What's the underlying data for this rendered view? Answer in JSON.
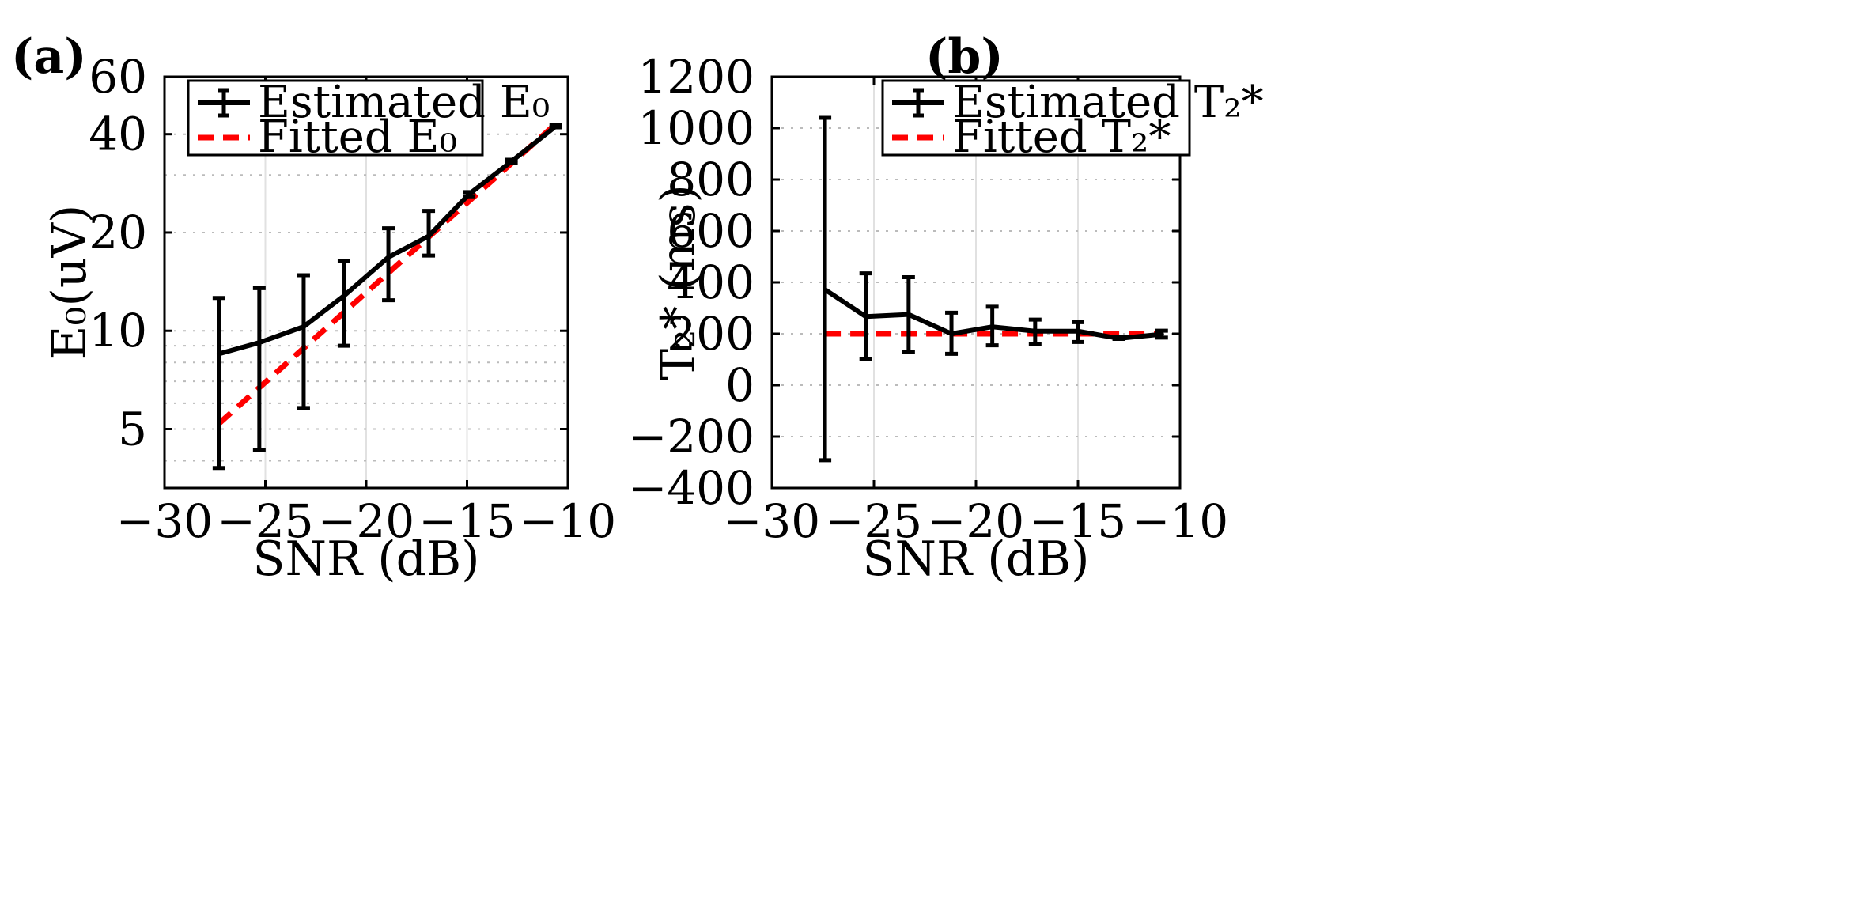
{
  "figure": {
    "panels": [
      {
        "label": "(a)"
      },
      {
        "label": "(b)"
      }
    ]
  },
  "chart_data": [
    {
      "type": "line",
      "panel": "(a)",
      "yscale": "log",
      "xlabel": "SNR (dB)",
      "ylabel": "E₀(uV)",
      "xlim": [
        -30,
        -10
      ],
      "ylim": [
        3.3,
        60
      ],
      "xticks": [
        -30,
        -25,
        -20,
        -15,
        -10
      ],
      "xtick_labels": [
        "−30",
        "−25",
        "−20",
        "−15",
        "−10"
      ],
      "yticks": [
        5,
        10,
        20,
        40,
        60
      ],
      "ytick_labels": [
        "5",
        "10",
        "20",
        "40",
        "60"
      ],
      "minor_grid_y": [
        4,
        6,
        7,
        8,
        9,
        30
      ],
      "legend": {
        "position": "top-left",
        "estimated": "Estimated E₀",
        "fitted": "Fitted E₀"
      },
      "series": [
        {
          "name": "Estimated E₀",
          "style": "solid-black-errorbar",
          "x": [
            -27.3,
            -25.3,
            -23.1,
            -21.1,
            -18.9,
            -16.9,
            -14.9,
            -12.8,
            -10.6
          ],
          "y": [
            8.5,
            9.2,
            10.3,
            12.8,
            16.8,
            19.5,
            26.2,
            33.0,
            42.3
          ],
          "err_low": [
            3.8,
            4.3,
            5.8,
            9.0,
            12.4,
            17.0,
            25.8,
            32.6,
            42.0
          ],
          "err_high": [
            12.6,
            13.5,
            14.8,
            16.4,
            20.6,
            23.3,
            26.6,
            33.4,
            42.6
          ]
        },
        {
          "name": "Fitted E₀",
          "style": "dashed-red",
          "x": [
            -27.3,
            -10.6
          ],
          "y": [
            5.2,
            43.0
          ]
        }
      ]
    },
    {
      "type": "line",
      "panel": "(b)",
      "xlabel": "SNR (dB)",
      "ylabel": "T₂* (ms)",
      "xlim": [
        -30,
        -10
      ],
      "ylim": [
        -400,
        1200
      ],
      "xticks": [
        -30,
        -25,
        -20,
        -15,
        -10
      ],
      "xtick_labels": [
        "−30",
        "−25",
        "−20",
        "−15",
        "−10"
      ],
      "yticks": [
        -400,
        -200,
        0,
        200,
        400,
        600,
        800,
        1000,
        1200
      ],
      "ytick_labels": [
        "−400",
        "−200",
        "0",
        "200",
        "400",
        "600",
        "800",
        "1000",
        "1200"
      ],
      "legend": {
        "position": "top-right",
        "estimated": "Estimated T₂*",
        "fitted": "Fitted T₂*"
      },
      "series": [
        {
          "name": "Estimated T₂*",
          "style": "solid-black-errorbar",
          "x": [
            -27.4,
            -25.4,
            -23.3,
            -21.2,
            -19.2,
            -17.1,
            -15.0,
            -13.0,
            -10.9
          ],
          "y": [
            372,
            267,
            275,
            200,
            227,
            210,
            210,
            182,
            198
          ],
          "err_low": [
            -292,
            100,
            130,
            122,
            155,
            160,
            168,
            180,
            185
          ],
          "err_high": [
            1040,
            435,
            420,
            282,
            305,
            255,
            245,
            188,
            212
          ]
        },
        {
          "name": "Fitted T₂*",
          "style": "dashed-red",
          "x": [
            -27.4,
            -10.9
          ],
          "y": [
            200,
            200
          ]
        }
      ]
    }
  ]
}
